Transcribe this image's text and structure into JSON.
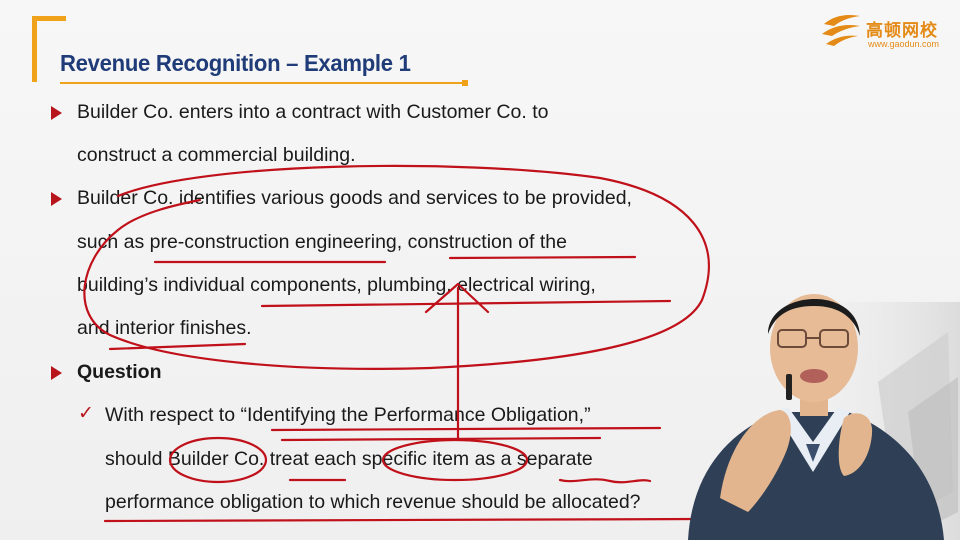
{
  "slide": {
    "title": "Revenue Recognition – Example 1",
    "bullets": [
      {
        "lines": [
          "Builder Co. enters into a contract with Customer Co. to",
          "construct a commercial building."
        ]
      },
      {
        "lines": [
          "Builder Co. identifies various goods and services to be provided,",
          "such as pre-construction engineering, construction of the",
          "building’s individual components, plumbing, electrical wiring,",
          "and interior finishes."
        ]
      },
      {
        "lines": [
          "Question"
        ]
      }
    ],
    "sub_bullet": {
      "lines": [
        "With respect to “Identifying the Performance Obligation,”",
        "should Builder Co. treat each specific item as a separate",
        "performance obligation to which revenue should be allocated?"
      ]
    }
  },
  "logo": {
    "name": "高顿网校",
    "url": "www.gaodun.com"
  },
  "colors": {
    "title": "#1f3b78",
    "accent": "#f0a21b",
    "bullet": "#b8141b",
    "annotation": "#c0101a",
    "logo": "#e48a16"
  }
}
